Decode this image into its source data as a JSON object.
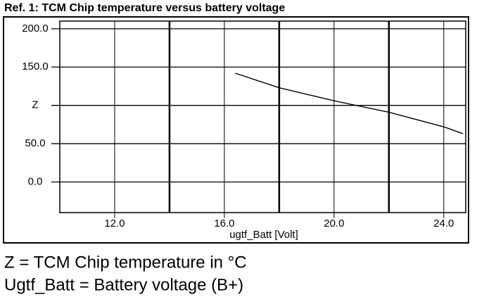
{
  "chart_data": {
    "type": "line",
    "title": "Ref. 1: TCM Chip temperature versus battery voltage",
    "x_label": "ugtf_Batt [Volt]",
    "x": [
      16.4,
      18,
      20,
      22,
      24,
      24.7
    ],
    "series": [
      {
        "color": "#000000",
        "values": [
          142,
          123,
          106,
          91,
          72,
          63
        ]
      }
    ],
    "xlim": [
      10,
      24.8
    ],
    "xticks": [
      {
        "value": 12,
        "label": "12.0"
      },
      {
        "value": 16,
        "label": "16.0"
      },
      {
        "value": 20,
        "label": "20.0"
      },
      {
        "value": 24,
        "label": "24.0"
      }
    ],
    "x_major_grid": [
      14,
      18,
      22
    ],
    "ylim": [
      -40,
      210
    ],
    "yticks": [
      {
        "value": 0,
        "label": "0.0"
      },
      {
        "value": 50,
        "label": "50.0"
      },
      {
        "value": 100,
        "label": "Z"
      },
      {
        "value": 150,
        "label": "150.0"
      },
      {
        "value": 200,
        "label": "200.0"
      }
    ],
    "grid": true,
    "notes": [
      "Z = TCM Chip temperature in °C",
      "Ugtf_Batt = Battery voltage (B+)"
    ]
  }
}
